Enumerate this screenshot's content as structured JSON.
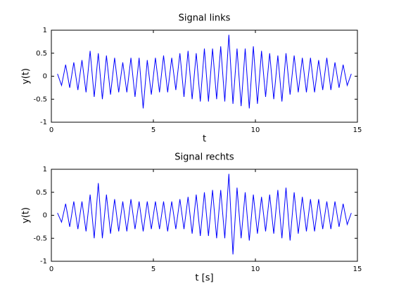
{
  "chart_data": [
    {
      "type": "line",
      "title": "Signal links",
      "xlabel": "t",
      "ylabel": "y(t)",
      "color": "#0000ff",
      "xlim": [
        0,
        15
      ],
      "xticks": [
        0,
        5,
        10,
        15
      ],
      "ylim": [
        -1,
        1
      ],
      "yticks": [
        -1,
        -0.5,
        0,
        0.5,
        1
      ],
      "x": [
        0.3,
        0.5,
        0.7,
        0.9,
        1.1,
        1.3,
        1.5,
        1.7,
        1.9,
        2.1,
        2.3,
        2.5,
        2.7,
        2.9,
        3.1,
        3.3,
        3.5,
        3.7,
        3.9,
        4.1,
        4.3,
        4.5,
        4.7,
        4.9,
        5.1,
        5.3,
        5.5,
        5.7,
        5.9,
        6.1,
        6.3,
        6.5,
        6.7,
        6.9,
        7.1,
        7.3,
        7.5,
        7.7,
        7.9,
        8.1,
        8.3,
        8.5,
        8.7,
        8.9,
        9.1,
        9.3,
        9.5,
        9.7,
        9.9,
        10.1,
        10.3,
        10.5,
        10.7,
        10.9,
        11.1,
        11.3,
        11.5,
        11.7,
        11.9,
        12.1,
        12.3,
        12.5,
        12.7,
        12.9,
        13.1,
        13.3,
        13.5,
        13.7,
        13.9,
        14.1,
        14.3,
        14.5,
        14.7
      ],
      "values": [
        0.05,
        -0.2,
        0.25,
        -0.25,
        0.3,
        -0.3,
        0.35,
        -0.35,
        0.55,
        -0.45,
        0.5,
        -0.5,
        0.45,
        -0.4,
        0.4,
        -0.35,
        0.3,
        -0.35,
        0.4,
        -0.45,
        0.4,
        -0.7,
        0.35,
        -0.4,
        0.4,
        -0.35,
        0.45,
        -0.35,
        0.4,
        -0.3,
        0.5,
        -0.45,
        0.55,
        -0.5,
        0.5,
        -0.55,
        0.6,
        -0.55,
        0.6,
        -0.5,
        0.65,
        -0.55,
        0.9,
        -0.6,
        0.6,
        -0.65,
        0.6,
        -0.7,
        0.65,
        -0.6,
        0.55,
        -0.45,
        0.5,
        -0.5,
        0.45,
        -0.55,
        0.5,
        -0.4,
        0.45,
        -0.35,
        0.4,
        -0.35,
        0.4,
        -0.35,
        0.35,
        -0.3,
        0.4,
        -0.3,
        0.3,
        -0.25,
        0.25,
        -0.2,
        0.05
      ]
    },
    {
      "type": "line",
      "title": "Signal rechts",
      "xlabel": "t [s]",
      "ylabel": "y(t)",
      "color": "#0000ff",
      "xlim": [
        0,
        15
      ],
      "xticks": [
        0,
        5,
        10,
        15
      ],
      "ylim": [
        -1,
        1
      ],
      "yticks": [
        -1,
        -0.5,
        0,
        0.5,
        1
      ],
      "x": [
        0.3,
        0.5,
        0.7,
        0.9,
        1.1,
        1.3,
        1.5,
        1.7,
        1.9,
        2.1,
        2.3,
        2.5,
        2.7,
        2.9,
        3.1,
        3.3,
        3.5,
        3.7,
        3.9,
        4.1,
        4.3,
        4.5,
        4.7,
        4.9,
        5.1,
        5.3,
        5.5,
        5.7,
        5.9,
        6.1,
        6.3,
        6.5,
        6.7,
        6.9,
        7.1,
        7.3,
        7.5,
        7.7,
        7.9,
        8.1,
        8.3,
        8.5,
        8.7,
        8.9,
        9.1,
        9.3,
        9.5,
        9.7,
        9.9,
        10.1,
        10.3,
        10.5,
        10.7,
        10.9,
        11.1,
        11.3,
        11.5,
        11.7,
        11.9,
        12.1,
        12.3,
        12.5,
        12.7,
        12.9,
        13.1,
        13.3,
        13.5,
        13.7,
        13.9,
        14.1,
        14.3,
        14.5,
        14.7
      ],
      "values": [
        0.05,
        -0.15,
        0.25,
        -0.25,
        0.3,
        -0.3,
        0.3,
        -0.35,
        0.45,
        -0.5,
        0.7,
        -0.5,
        0.45,
        -0.4,
        0.35,
        -0.35,
        0.3,
        -0.35,
        0.35,
        -0.3,
        0.3,
        -0.35,
        0.3,
        -0.3,
        0.3,
        -0.3,
        0.3,
        -0.35,
        0.3,
        -0.3,
        0.35,
        -0.3,
        0.4,
        -0.4,
        0.45,
        -0.45,
        0.5,
        -0.45,
        0.55,
        -0.5,
        0.55,
        -0.5,
        0.9,
        -0.85,
        0.6,
        -0.5,
        0.5,
        -0.55,
        0.45,
        -0.4,
        0.4,
        -0.35,
        0.45,
        -0.4,
        0.55,
        -0.5,
        0.6,
        -0.55,
        0.5,
        -0.4,
        0.4,
        -0.35,
        0.35,
        -0.35,
        0.35,
        -0.3,
        0.3,
        -0.3,
        0.3,
        -0.25,
        0.25,
        -0.2,
        0.05
      ]
    }
  ]
}
